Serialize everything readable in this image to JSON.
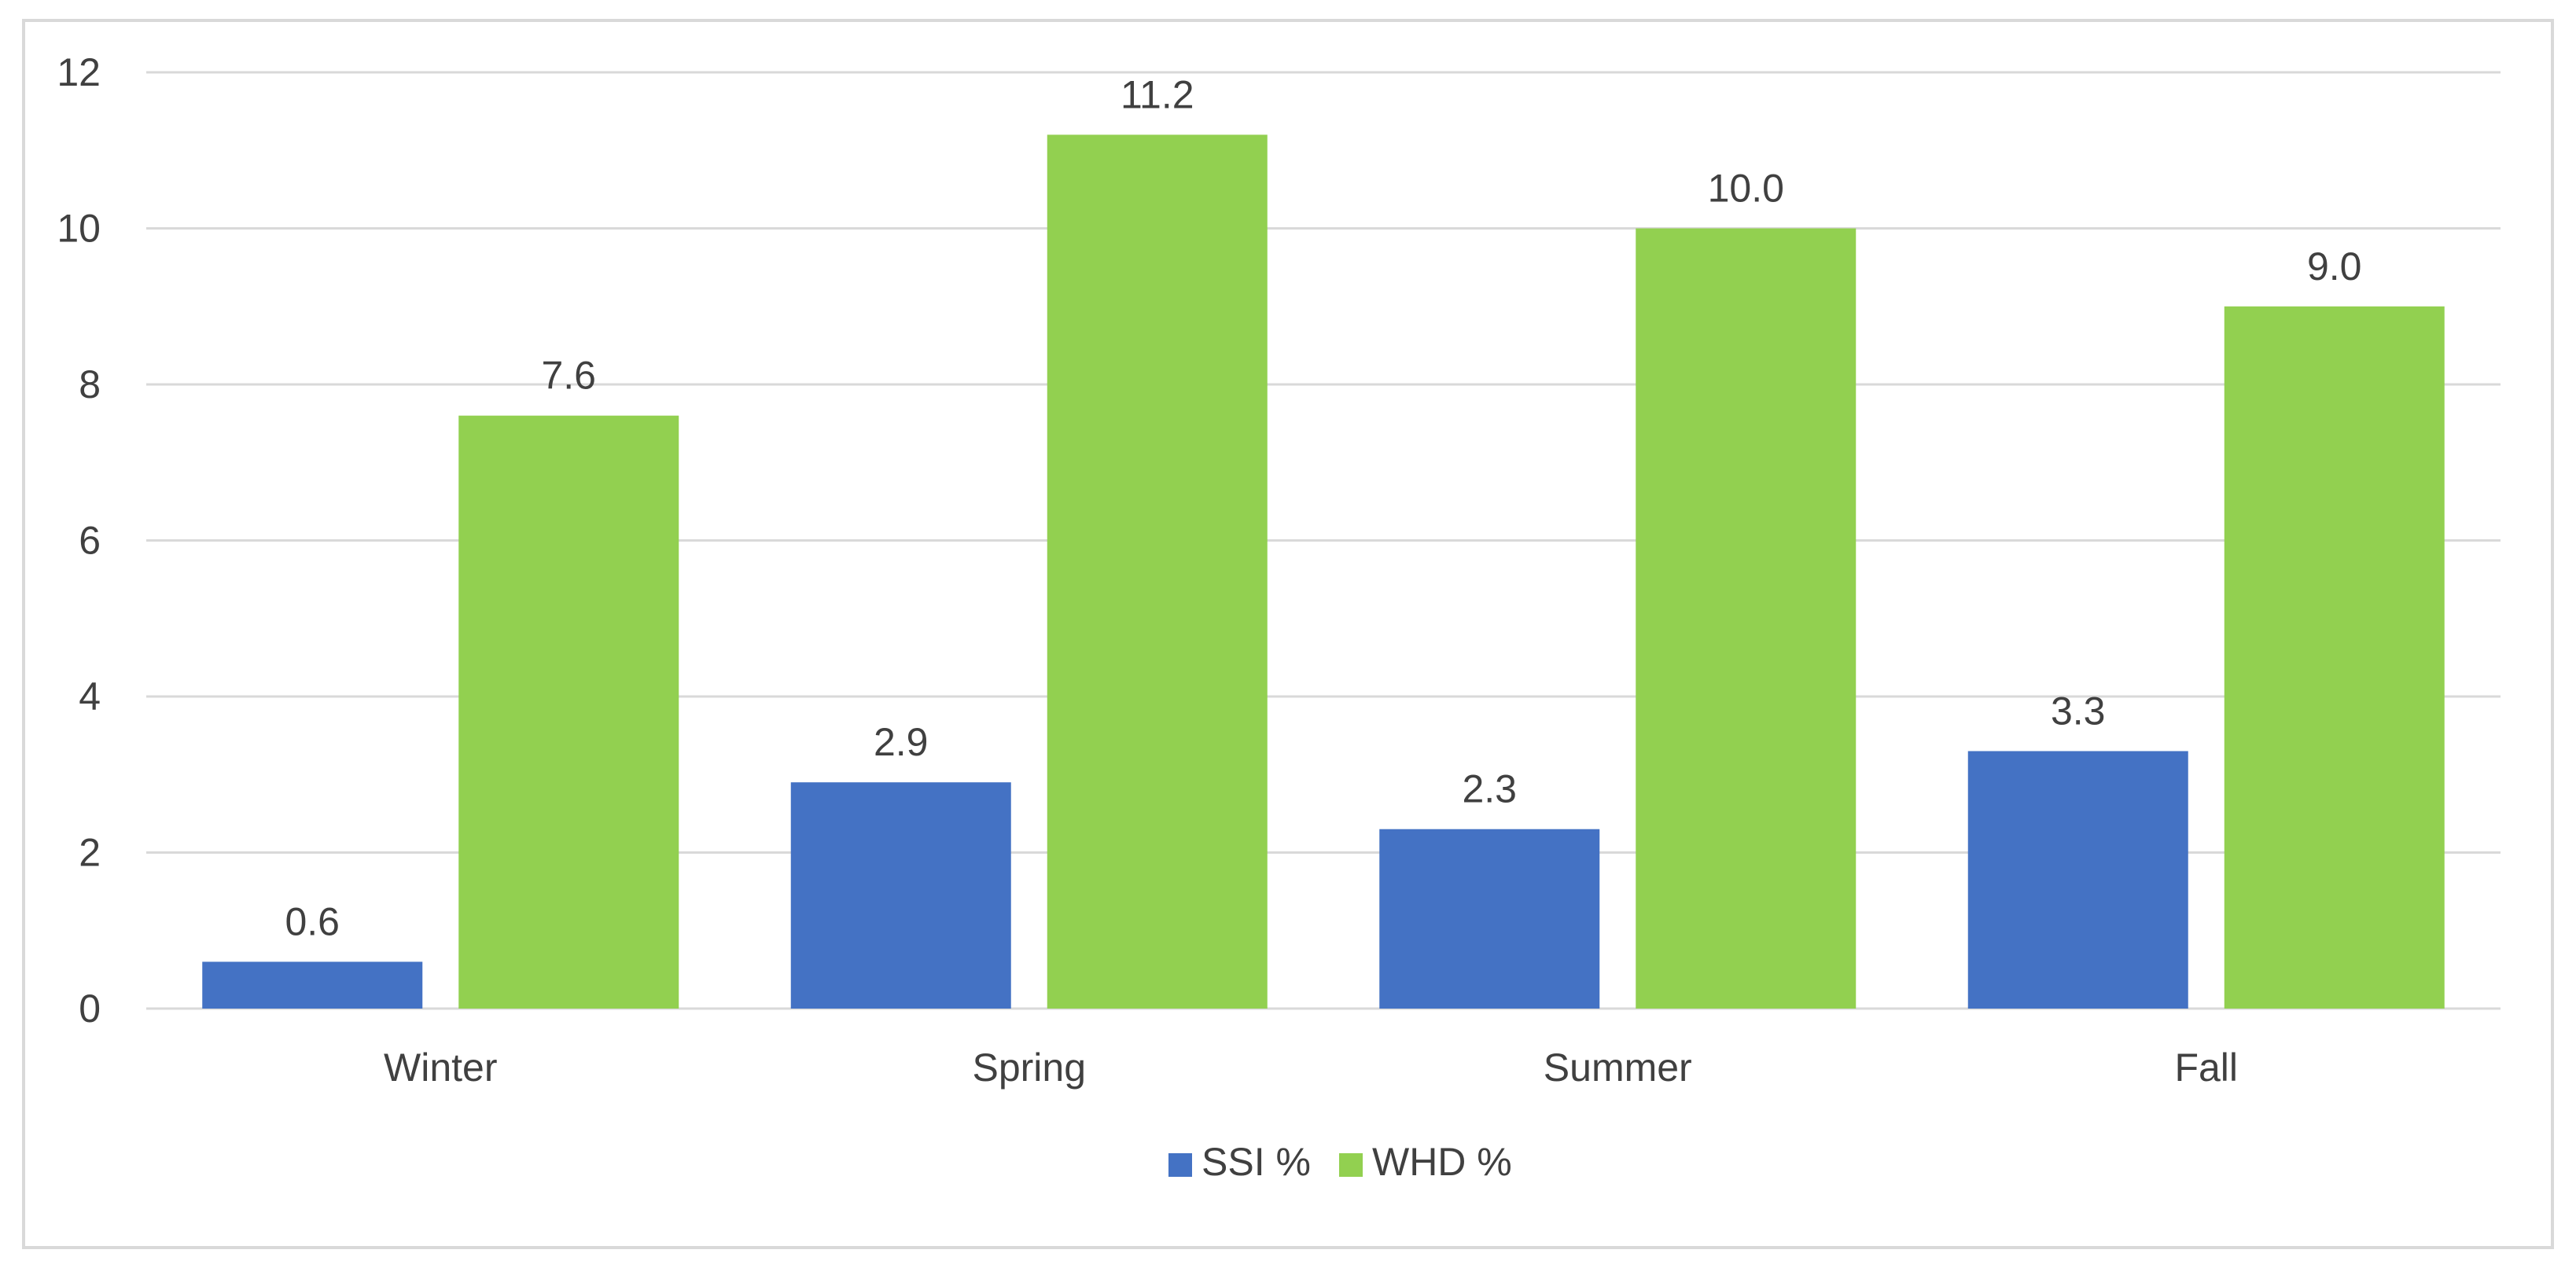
{
  "chart_data": {
    "type": "bar",
    "title": "",
    "xlabel": "",
    "ylabel": "",
    "categories": [
      "Winter",
      "Spring",
      "Summer",
      "Fall"
    ],
    "series": [
      {
        "name": "SSI %",
        "color": "#4472c4",
        "values": [
          0.6,
          2.9,
          2.3,
          3.3
        ],
        "labels": [
          "0.6",
          "2.9",
          "2.3",
          "3.3"
        ]
      },
      {
        "name": "WHD %",
        "color": "#92d050",
        "values": [
          7.6,
          11.2,
          10.0,
          9.0
        ],
        "labels": [
          "7.6",
          "11.2",
          "10.0",
          "9.0"
        ]
      }
    ],
    "ylim": [
      0,
      12
    ],
    "yticks": [
      "0",
      "2",
      "4",
      "6",
      "8",
      "10",
      "12"
    ],
    "grid": true,
    "gridline_color": "#d9d9d9",
    "legend": "bottom-center"
  }
}
